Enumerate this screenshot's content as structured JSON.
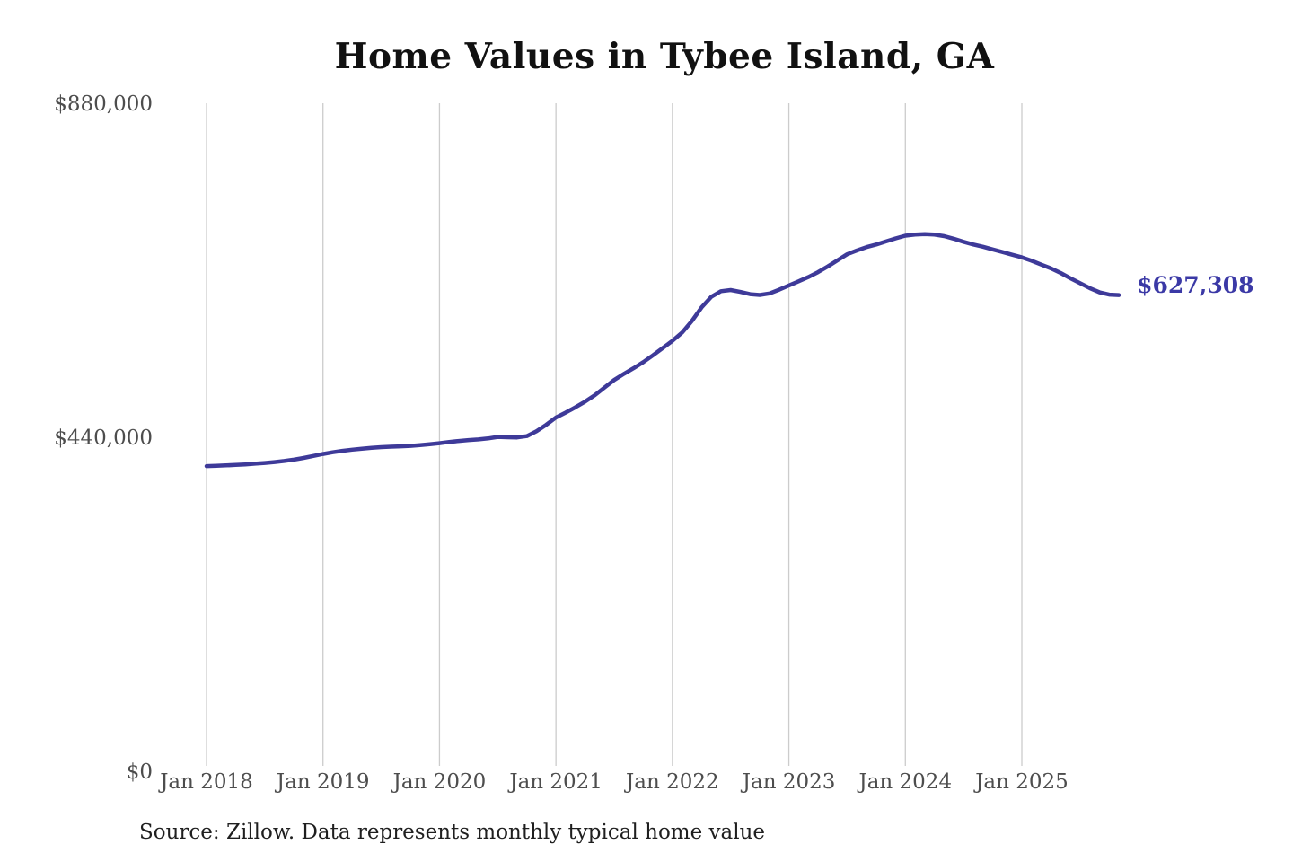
{
  "chart": {
    "title": "Home Values in Tybee Island, GA",
    "end_label": "$627,308",
    "source": "Source: Zillow. Data represents monthly typical home value",
    "accent_color": "#3e3a99",
    "end_label_color": "#3b39a6",
    "gridline_color": "#cccccc"
  },
  "chart_data": {
    "type": "line",
    "title": "Home Values in Tybee Island, GA",
    "source": "Source: Zillow. Data represents monthly typical home value",
    "grid": "vertical-only",
    "legend": "none",
    "ylim": [
      0,
      880000
    ],
    "y_ticks": [
      {
        "value": 0,
        "label": "$0"
      },
      {
        "value": 440000,
        "label": "$440,000"
      },
      {
        "value": 880000,
        "label": "$880,000"
      }
    ],
    "x_tick_labels": [
      "Jan 2018",
      "Jan 2019",
      "Jan 2020",
      "Jan 2021",
      "Jan 2022",
      "Jan 2023",
      "Jan 2024",
      "Jan 2025"
    ],
    "x_range": [
      "2018-01",
      "2025-11"
    ],
    "last_value": 627308,
    "last_value_label": "$627,308",
    "values": [
      402000,
      402500,
      403000,
      403600,
      404300,
      405200,
      406200,
      407400,
      408800,
      410500,
      412800,
      415400,
      418000,
      420200,
      422100,
      423700,
      425000,
      426100,
      427000,
      427600,
      428100,
      428700,
      429600,
      430800,
      432200,
      433800,
      435200,
      436300,
      437200,
      438500,
      440500,
      440000,
      439800,
      441500,
      448000,
      456500,
      466000,
      472500,
      479500,
      487000,
      495500,
      505500,
      515500,
      523500,
      531000,
      539000,
      548000,
      557500,
      567000,
      578000,
      593000,
      611000,
      625000,
      632500,
      634000,
      631500,
      628500,
      627500,
      629500,
      634500,
      640000,
      645500,
      651000,
      657500,
      665000,
      673000,
      681000,
      686000,
      690500,
      694000,
      698000,
      702000,
      705500,
      707000,
      707500,
      707000,
      705000,
      701500,
      697500,
      694000,
      691000,
      687500,
      684000,
      680500,
      677000,
      672500,
      667500,
      662500,
      656500,
      649500,
      643000,
      636500,
      631000,
      628000,
      627308
    ]
  }
}
